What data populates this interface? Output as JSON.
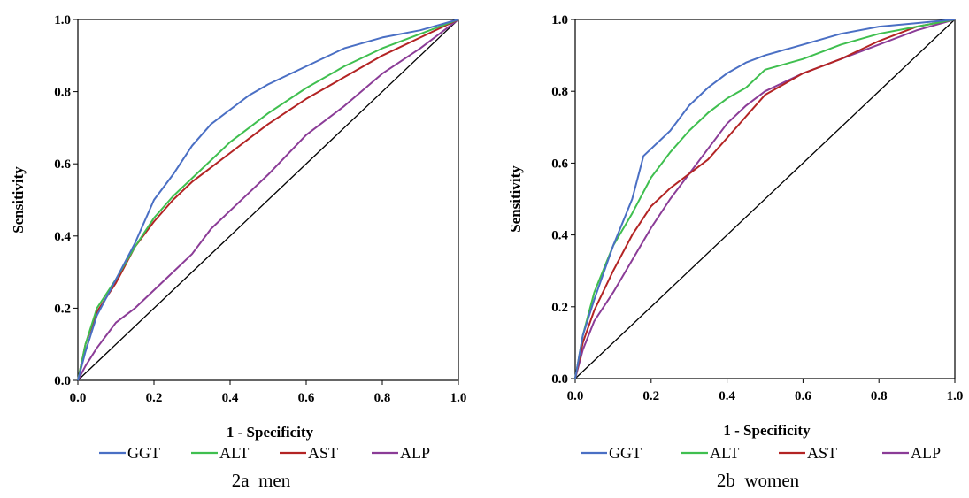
{
  "chart_data": [
    {
      "type": "line",
      "caption": "2a  men",
      "xlabel": "1 - Specificity",
      "ylabel": "Sensitivity",
      "xlim": [
        0,
        1
      ],
      "ylim": [
        0,
        1
      ],
      "xticks": [
        "0.0",
        "0.2",
        "0.4",
        "0.6",
        "0.8",
        "1.0"
      ],
      "yticks": [
        "0.0",
        "0.2",
        "0.4",
        "0.6",
        "0.8",
        "1.0"
      ],
      "grid": false,
      "legend_position": "bottom",
      "reference_line": [
        [
          0,
          0
        ],
        [
          1,
          1
        ]
      ],
      "series": [
        {
          "name": "GGT",
          "color": "#4a6fc4",
          "points": [
            [
              0,
              0
            ],
            [
              0.02,
              0.08
            ],
            [
              0.05,
              0.18
            ],
            [
              0.1,
              0.28
            ],
            [
              0.15,
              0.38
            ],
            [
              0.2,
              0.5
            ],
            [
              0.25,
              0.57
            ],
            [
              0.3,
              0.65
            ],
            [
              0.35,
              0.71
            ],
            [
              0.4,
              0.75
            ],
            [
              0.45,
              0.79
            ],
            [
              0.5,
              0.82
            ],
            [
              0.6,
              0.87
            ],
            [
              0.7,
              0.92
            ],
            [
              0.8,
              0.95
            ],
            [
              0.9,
              0.97
            ],
            [
              1,
              1
            ]
          ]
        },
        {
          "name": "ALT",
          "color": "#3fbf4f",
          "points": [
            [
              0,
              0
            ],
            [
              0.02,
              0.1
            ],
            [
              0.05,
              0.2
            ],
            [
              0.1,
              0.28
            ],
            [
              0.15,
              0.37
            ],
            [
              0.2,
              0.45
            ],
            [
              0.25,
              0.51
            ],
            [
              0.3,
              0.56
            ],
            [
              0.35,
              0.61
            ],
            [
              0.4,
              0.66
            ],
            [
              0.45,
              0.7
            ],
            [
              0.5,
              0.74
            ],
            [
              0.6,
              0.81
            ],
            [
              0.7,
              0.87
            ],
            [
              0.8,
              0.92
            ],
            [
              0.9,
              0.96
            ],
            [
              1,
              1
            ]
          ]
        },
        {
          "name": "AST",
          "color": "#b32424",
          "points": [
            [
              0,
              0
            ],
            [
              0.02,
              0.1
            ],
            [
              0.05,
              0.19
            ],
            [
              0.1,
              0.27
            ],
            [
              0.15,
              0.37
            ],
            [
              0.2,
              0.44
            ],
            [
              0.25,
              0.5
            ],
            [
              0.3,
              0.55
            ],
            [
              0.35,
              0.59
            ],
            [
              0.4,
              0.63
            ],
            [
              0.45,
              0.67
            ],
            [
              0.5,
              0.71
            ],
            [
              0.6,
              0.78
            ],
            [
              0.7,
              0.84
            ],
            [
              0.8,
              0.9
            ],
            [
              0.9,
              0.95
            ],
            [
              1,
              1
            ]
          ]
        },
        {
          "name": "ALP",
          "color": "#8b3c97",
          "points": [
            [
              0,
              0
            ],
            [
              0.02,
              0.04
            ],
            [
              0.05,
              0.09
            ],
            [
              0.1,
              0.16
            ],
            [
              0.15,
              0.2
            ],
            [
              0.2,
              0.25
            ],
            [
              0.25,
              0.3
            ],
            [
              0.3,
              0.35
            ],
            [
              0.35,
              0.42
            ],
            [
              0.4,
              0.47
            ],
            [
              0.45,
              0.52
            ],
            [
              0.5,
              0.57
            ],
            [
              0.6,
              0.68
            ],
            [
              0.7,
              0.76
            ],
            [
              0.8,
              0.85
            ],
            [
              0.9,
              0.92
            ],
            [
              1,
              1
            ]
          ]
        }
      ]
    },
    {
      "type": "line",
      "caption": "2b  women",
      "xlabel": "1 - Specificity",
      "ylabel": "Sensitivity",
      "xlim": [
        0,
        1
      ],
      "ylim": [
        0,
        1
      ],
      "xticks": [
        "0.0",
        "0.2",
        "0.4",
        "0.6",
        "0.8",
        "1.0"
      ],
      "yticks": [
        "0.0",
        "0.2",
        "0.4",
        "0.6",
        "0.8",
        "1.0"
      ],
      "grid": false,
      "legend_position": "bottom",
      "reference_line": [
        [
          0,
          0
        ],
        [
          1,
          1
        ]
      ],
      "series": [
        {
          "name": "GGT",
          "color": "#4a6fc4",
          "points": [
            [
              0,
              0
            ],
            [
              0.02,
              0.12
            ],
            [
              0.05,
              0.22
            ],
            [
              0.1,
              0.37
            ],
            [
              0.15,
              0.5
            ],
            [
              0.18,
              0.62
            ],
            [
              0.2,
              0.64
            ],
            [
              0.25,
              0.69
            ],
            [
              0.3,
              0.76
            ],
            [
              0.35,
              0.81
            ],
            [
              0.4,
              0.85
            ],
            [
              0.45,
              0.88
            ],
            [
              0.5,
              0.9
            ],
            [
              0.6,
              0.93
            ],
            [
              0.7,
              0.96
            ],
            [
              0.8,
              0.98
            ],
            [
              0.9,
              0.99
            ],
            [
              1,
              1
            ]
          ]
        },
        {
          "name": "ALT",
          "color": "#3fbf4f",
          "points": [
            [
              0,
              0
            ],
            [
              0.02,
              0.12
            ],
            [
              0.05,
              0.24
            ],
            [
              0.1,
              0.37
            ],
            [
              0.15,
              0.46
            ],
            [
              0.2,
              0.56
            ],
            [
              0.25,
              0.63
            ],
            [
              0.3,
              0.69
            ],
            [
              0.35,
              0.74
            ],
            [
              0.4,
              0.78
            ],
            [
              0.45,
              0.81
            ],
            [
              0.5,
              0.86
            ],
            [
              0.6,
              0.89
            ],
            [
              0.7,
              0.93
            ],
            [
              0.8,
              0.96
            ],
            [
              0.9,
              0.98
            ],
            [
              1,
              1
            ]
          ]
        },
        {
          "name": "AST",
          "color": "#b32424",
          "points": [
            [
              0,
              0
            ],
            [
              0.02,
              0.1
            ],
            [
              0.05,
              0.19
            ],
            [
              0.1,
              0.3
            ],
            [
              0.15,
              0.4
            ],
            [
              0.2,
              0.48
            ],
            [
              0.25,
              0.53
            ],
            [
              0.3,
              0.57
            ],
            [
              0.35,
              0.61
            ],
            [
              0.4,
              0.67
            ],
            [
              0.45,
              0.73
            ],
            [
              0.5,
              0.79
            ],
            [
              0.6,
              0.85
            ],
            [
              0.7,
              0.89
            ],
            [
              0.8,
              0.94
            ],
            [
              0.9,
              0.98
            ],
            [
              1,
              1
            ]
          ]
        },
        {
          "name": "ALP",
          "color": "#8b3c97",
          "points": [
            [
              0,
              0
            ],
            [
              0.02,
              0.08
            ],
            [
              0.05,
              0.16
            ],
            [
              0.1,
              0.24
            ],
            [
              0.15,
              0.33
            ],
            [
              0.2,
              0.42
            ],
            [
              0.25,
              0.5
            ],
            [
              0.3,
              0.57
            ],
            [
              0.35,
              0.64
            ],
            [
              0.4,
              0.71
            ],
            [
              0.45,
              0.76
            ],
            [
              0.5,
              0.8
            ],
            [
              0.6,
              0.85
            ],
            [
              0.7,
              0.89
            ],
            [
              0.8,
              0.93
            ],
            [
              0.9,
              0.97
            ],
            [
              1,
              1
            ]
          ]
        }
      ]
    }
  ]
}
